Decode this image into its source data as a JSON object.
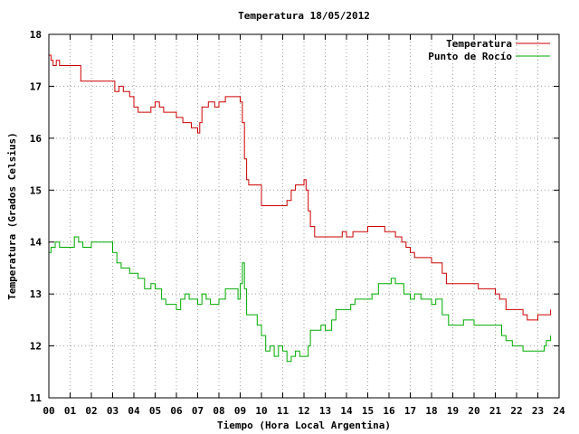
{
  "chart_data": {
    "type": "line",
    "title": "Temperatura 18/05/2012",
    "xlabel": "Tiempo (Hora Local Argentina)",
    "ylabel": "Temperatura (Grados Celsius)",
    "xlim": [
      0,
      24
    ],
    "ylim": [
      11,
      18
    ],
    "x_tick_labels": [
      "00",
      "01",
      "02",
      "03",
      "04",
      "05",
      "06",
      "07",
      "08",
      "09",
      "10",
      "11",
      "12",
      "13",
      "14",
      "15",
      "16",
      "17",
      "18",
      "19",
      "20",
      "21",
      "22",
      "23",
      "24"
    ],
    "y_tick_labels": [
      "11",
      "12",
      "13",
      "14",
      "15",
      "16",
      "17",
      "18"
    ],
    "grid": true,
    "legend_position": "top-right",
    "series": [
      {
        "name": "Temperatura",
        "color": "#cc0000",
        "points": [
          [
            0.0,
            17.6
          ],
          [
            0.1,
            17.5
          ],
          [
            0.2,
            17.4
          ],
          [
            0.35,
            17.5
          ],
          [
            0.5,
            17.4
          ],
          [
            1.0,
            17.4
          ],
          [
            1.3,
            17.4
          ],
          [
            1.5,
            17.1
          ],
          [
            2.0,
            17.1
          ],
          [
            3.0,
            17.1
          ],
          [
            3.1,
            16.9
          ],
          [
            3.3,
            17.0
          ],
          [
            3.5,
            16.9
          ],
          [
            3.8,
            16.8
          ],
          [
            4.0,
            16.6
          ],
          [
            4.2,
            16.5
          ],
          [
            4.5,
            16.5
          ],
          [
            4.8,
            16.6
          ],
          [
            5.0,
            16.7
          ],
          [
            5.2,
            16.6
          ],
          [
            5.4,
            16.5
          ],
          [
            6.0,
            16.4
          ],
          [
            6.3,
            16.3
          ],
          [
            6.7,
            16.2
          ],
          [
            7.0,
            16.1
          ],
          [
            7.1,
            16.3
          ],
          [
            7.2,
            16.6
          ],
          [
            7.5,
            16.7
          ],
          [
            7.8,
            16.6
          ],
          [
            8.0,
            16.7
          ],
          [
            8.2,
            16.7
          ],
          [
            8.3,
            16.8
          ],
          [
            8.5,
            16.8
          ],
          [
            8.8,
            16.8
          ],
          [
            9.0,
            16.7
          ],
          [
            9.1,
            16.3
          ],
          [
            9.2,
            15.6
          ],
          [
            9.3,
            15.2
          ],
          [
            9.4,
            15.1
          ],
          [
            9.8,
            15.1
          ],
          [
            10.0,
            14.7
          ],
          [
            10.5,
            14.7
          ],
          [
            11.0,
            14.7
          ],
          [
            11.2,
            14.8
          ],
          [
            11.4,
            15.0
          ],
          [
            11.6,
            15.1
          ],
          [
            11.9,
            15.1
          ],
          [
            12.0,
            15.2
          ],
          [
            12.1,
            15.0
          ],
          [
            12.2,
            14.6
          ],
          [
            12.3,
            14.3
          ],
          [
            12.5,
            14.1
          ],
          [
            13.0,
            14.1
          ],
          [
            13.5,
            14.1
          ],
          [
            13.8,
            14.2
          ],
          [
            14.0,
            14.1
          ],
          [
            14.3,
            14.2
          ],
          [
            14.8,
            14.2
          ],
          [
            15.0,
            14.3
          ],
          [
            15.7,
            14.3
          ],
          [
            15.8,
            14.2
          ],
          [
            16.0,
            14.2
          ],
          [
            16.3,
            14.1
          ],
          [
            16.6,
            14.0
          ],
          [
            16.8,
            13.9
          ],
          [
            17.0,
            13.8
          ],
          [
            17.2,
            13.7
          ],
          [
            17.8,
            13.7
          ],
          [
            18.0,
            13.6
          ],
          [
            18.3,
            13.6
          ],
          [
            18.5,
            13.4
          ],
          [
            18.7,
            13.2
          ],
          [
            19.0,
            13.2
          ],
          [
            19.5,
            13.2
          ],
          [
            20.0,
            13.2
          ],
          [
            20.2,
            13.1
          ],
          [
            20.7,
            13.1
          ],
          [
            21.0,
            13.0
          ],
          [
            21.2,
            12.9
          ],
          [
            21.5,
            12.7
          ],
          [
            22.0,
            12.7
          ],
          [
            22.3,
            12.6
          ],
          [
            22.5,
            12.5
          ],
          [
            22.8,
            12.5
          ],
          [
            23.0,
            12.6
          ],
          [
            23.3,
            12.6
          ],
          [
            23.5,
            12.6
          ],
          [
            23.6,
            12.7
          ]
        ]
      },
      {
        "name": "Punto de Rocío",
        "color": "#00aa00",
        "points": [
          [
            0.0,
            13.8
          ],
          [
            0.1,
            13.9
          ],
          [
            0.3,
            14.0
          ],
          [
            0.5,
            13.9
          ],
          [
            1.0,
            13.9
          ],
          [
            1.2,
            14.1
          ],
          [
            1.4,
            14.0
          ],
          [
            1.6,
            13.9
          ],
          [
            2.0,
            14.0
          ],
          [
            2.5,
            14.0
          ],
          [
            2.8,
            14.0
          ],
          [
            3.0,
            13.8
          ],
          [
            3.2,
            13.6
          ],
          [
            3.4,
            13.5
          ],
          [
            3.8,
            13.4
          ],
          [
            4.0,
            13.4
          ],
          [
            4.2,
            13.3
          ],
          [
            4.5,
            13.1
          ],
          [
            4.8,
            13.2
          ],
          [
            5.0,
            13.1
          ],
          [
            5.3,
            12.9
          ],
          [
            5.5,
            12.8
          ],
          [
            6.0,
            12.7
          ],
          [
            6.2,
            12.9
          ],
          [
            6.4,
            13.0
          ],
          [
            6.6,
            12.9
          ],
          [
            7.0,
            12.8
          ],
          [
            7.2,
            13.0
          ],
          [
            7.4,
            12.9
          ],
          [
            7.6,
            12.8
          ],
          [
            8.0,
            12.9
          ],
          [
            8.3,
            13.1
          ],
          [
            8.6,
            13.1
          ],
          [
            8.9,
            12.9
          ],
          [
            9.0,
            13.2
          ],
          [
            9.1,
            13.6
          ],
          [
            9.2,
            13.1
          ],
          [
            9.3,
            12.6
          ],
          [
            9.6,
            12.6
          ],
          [
            9.8,
            12.4
          ],
          [
            10.0,
            12.2
          ],
          [
            10.2,
            11.9
          ],
          [
            10.4,
            12.0
          ],
          [
            10.6,
            11.8
          ],
          [
            10.8,
            12.0
          ],
          [
            11.0,
            11.9
          ],
          [
            11.2,
            11.7
          ],
          [
            11.4,
            11.8
          ],
          [
            11.6,
            11.9
          ],
          [
            11.8,
            11.8
          ],
          [
            12.0,
            11.8
          ],
          [
            12.2,
            12.0
          ],
          [
            12.3,
            12.3
          ],
          [
            12.5,
            12.3
          ],
          [
            12.8,
            12.4
          ],
          [
            13.0,
            12.3
          ],
          [
            13.3,
            12.5
          ],
          [
            13.5,
            12.7
          ],
          [
            13.8,
            12.7
          ],
          [
            14.0,
            12.7
          ],
          [
            14.2,
            12.8
          ],
          [
            14.4,
            12.9
          ],
          [
            14.7,
            12.9
          ],
          [
            15.0,
            12.9
          ],
          [
            15.2,
            13.0
          ],
          [
            15.5,
            13.2
          ],
          [
            15.8,
            13.2
          ],
          [
            16.0,
            13.2
          ],
          [
            16.1,
            13.3
          ],
          [
            16.3,
            13.2
          ],
          [
            16.5,
            13.2
          ],
          [
            16.7,
            13.0
          ],
          [
            17.0,
            12.9
          ],
          [
            17.2,
            13.0
          ],
          [
            17.5,
            12.9
          ],
          [
            18.0,
            12.8
          ],
          [
            18.2,
            12.9
          ],
          [
            18.5,
            12.6
          ],
          [
            18.8,
            12.4
          ],
          [
            19.0,
            12.4
          ],
          [
            19.3,
            12.4
          ],
          [
            19.5,
            12.5
          ],
          [
            19.8,
            12.5
          ],
          [
            20.0,
            12.4
          ],
          [
            20.5,
            12.4
          ],
          [
            21.0,
            12.4
          ],
          [
            21.3,
            12.2
          ],
          [
            21.5,
            12.1
          ],
          [
            21.8,
            12.0
          ],
          [
            22.0,
            12.0
          ],
          [
            22.3,
            11.9
          ],
          [
            22.6,
            11.9
          ],
          [
            23.0,
            11.9
          ],
          [
            23.2,
            11.9
          ],
          [
            23.3,
            12.0
          ],
          [
            23.4,
            12.1
          ],
          [
            23.6,
            12.2
          ]
        ]
      }
    ]
  }
}
